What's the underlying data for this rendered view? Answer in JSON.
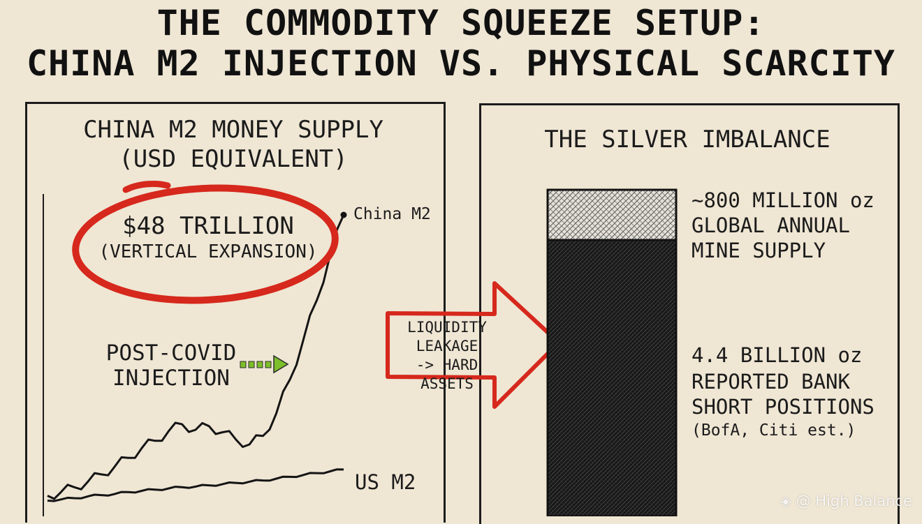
{
  "title": {
    "line1": "THE COMMODITY SQUEEZE SETUP:",
    "line2": "CHINA M2 INJECTION VS. PHYSICAL SCARCITY"
  },
  "left_panel": {
    "title_line1": "CHINA M2 MONEY SUPPLY",
    "title_line2": "(USD EQUIVALENT)",
    "callout_value": "$48 TRILLION",
    "callout_note": "(VERTICAL EXPANSION)",
    "annotation_line1": "POST-COVID",
    "annotation_line2": "INJECTION"
  },
  "arrow": {
    "line1": "LIQUIDITY",
    "line2": "LEAKAGE",
    "line3": "-> HARD ASSETS"
  },
  "right_panel": {
    "title": "THE SILVER IMBALANCE",
    "supply_line1": "~800 MILLION oz",
    "supply_line2": "GLOBAL ANNUAL",
    "supply_line3": "MINE SUPPLY",
    "short_line1": "4.4 BILLION oz",
    "short_line2": "REPORTED BANK",
    "short_line3": "SHORT POSITIONS",
    "short_line4": "(BofA, Citi est.)"
  },
  "chart_data": [
    {
      "type": "line",
      "title": "CHINA M2 MONEY SUPPLY (USD EQUIVALENT)",
      "series": [
        {
          "name": "China M2",
          "values": [
            2,
            2.6,
            3.4,
            4.3,
            5.5,
            6.8,
            8.2,
            9.8,
            11.0,
            12.6,
            13.7,
            12.8,
            13.4,
            12.4,
            11.2,
            10.4,
            11.8,
            15.5,
            21.0,
            27.5,
            34.0,
            41.5,
            48.0
          ]
        },
        {
          "name": "US M2",
          "values": [
            1.2,
            1.4,
            1.6,
            1.9,
            2.1,
            2.3,
            2.6,
            2.8,
            3.0,
            3.2,
            3.4,
            3.5,
            3.7,
            3.9,
            4.1,
            4.3,
            4.5,
            4.8,
            5.1,
            5.4,
            5.7,
            6.0,
            6.3
          ]
        }
      ],
      "unit": "USD trillion",
      "highlight": "$48 TRILLION",
      "colors": {
        "line": "#141414",
        "callout": "#d6281c",
        "arrow": "#7cbf2a"
      }
    },
    {
      "type": "bar",
      "title": "THE SILVER IMBALANCE",
      "categories": [
        "GLOBAL ANNUAL MINE SUPPLY",
        "REPORTED BANK SHORT POSITIONS"
      ],
      "values": [
        0.8,
        4.4
      ],
      "unit": "billion oz",
      "stacked": true,
      "colors": {
        "supply": "#8a8a8a",
        "shorts": "#111111"
      }
    }
  ]
}
